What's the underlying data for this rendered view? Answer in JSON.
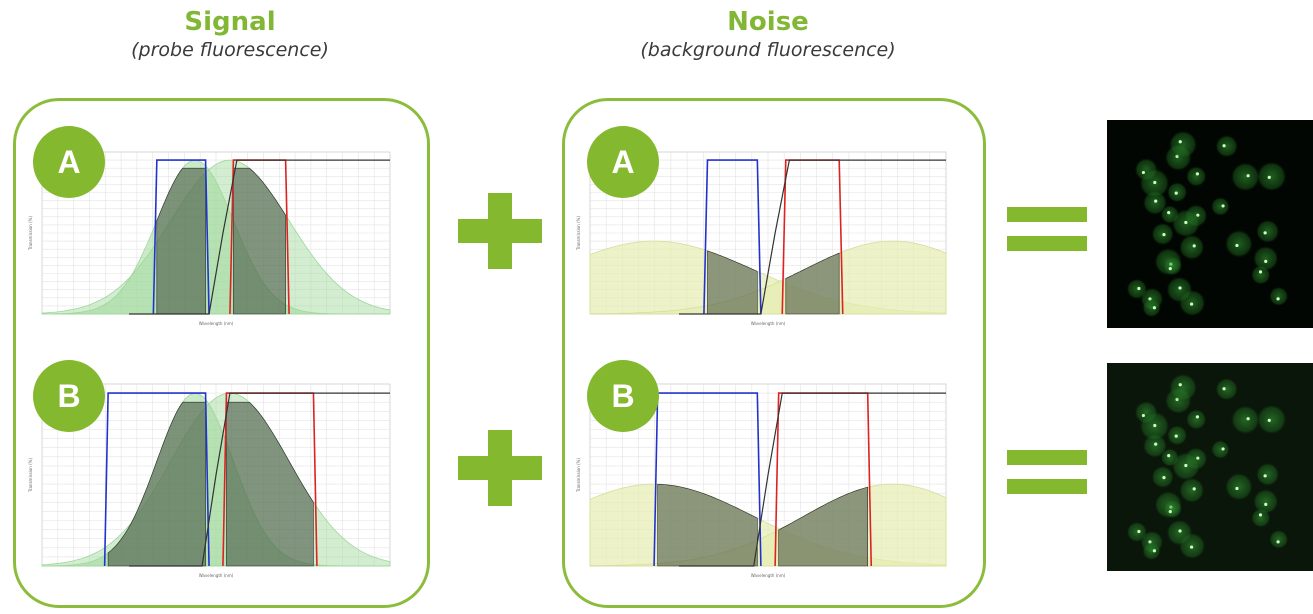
{
  "signal": {
    "title": "Signal",
    "subtitle": "(probe fluorescence)"
  },
  "noise": {
    "title": "Noise",
    "subtitle": "(background fluorescence)"
  },
  "badges": {
    "a": "A",
    "b": "B"
  },
  "plot_text": {
    "y_axis_label": "Transmission (%)",
    "x_axis_label": "Wavelength (nm)"
  },
  "colors": {
    "accent_green": "#84b82e",
    "excitation_filter": "#2233cc",
    "emission_filter": "#dd2222",
    "dichroic": "#333333",
    "probe_spectrum": "#9ed89a",
    "background_spectrum": "#e6ecb0"
  }
}
